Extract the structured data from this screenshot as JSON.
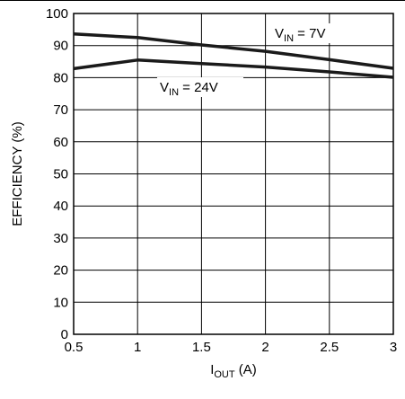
{
  "chart_data": {
    "type": "line",
    "title": "",
    "xlabel": {
      "main": "I",
      "sub": "OUT",
      "rest": " (A)"
    },
    "ylabel": "EFFICIENCY (%)",
    "xlim": [
      0.5,
      3
    ],
    "ylim": [
      0,
      100
    ],
    "x_ticks": [
      0.5,
      1,
      1.5,
      2,
      2.5,
      3
    ],
    "x_tick_labels": [
      "0.5",
      "1",
      "1.5",
      "2",
      "2.5",
      "3"
    ],
    "y_ticks": [
      0,
      10,
      20,
      30,
      40,
      50,
      60,
      70,
      80,
      90,
      100
    ],
    "y_tick_labels": [
      "0",
      "10",
      "20",
      "30",
      "40",
      "50",
      "60",
      "70",
      "80",
      "90",
      "100"
    ],
    "grid": true,
    "series": [
      {
        "name": "VIN = 7V",
        "label": {
          "main": "V",
          "sub": "IN",
          "rest": " = 7V"
        },
        "x": [
          0.5,
          1,
          1.5,
          2,
          2.5,
          3
        ],
        "values": [
          93.6,
          92.5,
          90.2,
          88.2,
          85.6,
          82.9
        ]
      },
      {
        "name": "VIN = 24V",
        "label": {
          "main": "V",
          "sub": "IN",
          "rest": " = 24V"
        },
        "x": [
          0.5,
          1,
          1.5,
          2,
          2.5,
          3
        ],
        "values": [
          82.8,
          85.5,
          84.4,
          83.3,
          81.8,
          80.1
        ]
      }
    ],
    "line_color": "#1a1a1a"
  }
}
